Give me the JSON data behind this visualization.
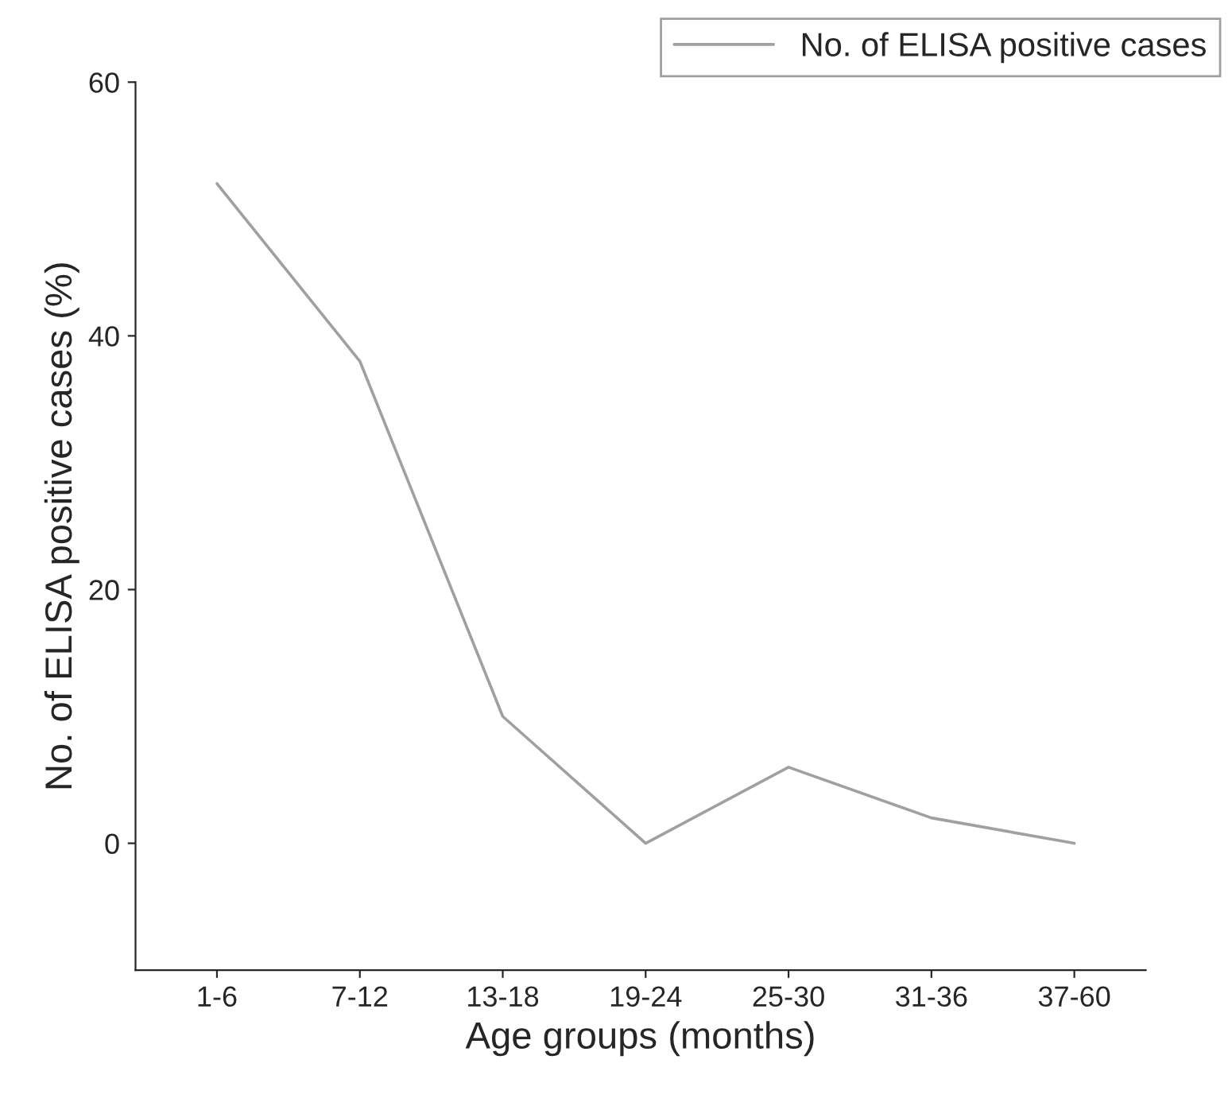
{
  "chart_data": {
    "type": "line",
    "xlabel": "Age groups (months)",
    "ylabel": "No. of ELISA positive cases (%)",
    "categories": [
      "1-6",
      "7-12",
      "13-18",
      "19-24",
      "25-30",
      "31-36",
      "37-60"
    ],
    "series": [
      {
        "name": "No. of ELISA positive cases",
        "color": "#a0a0a0",
        "values": [
          52,
          38,
          10,
          0,
          6,
          2,
          0
        ]
      }
    ],
    "ylim": [
      -10,
      60
    ],
    "yticks": [
      0,
      20,
      40,
      60
    ],
    "grid": false,
    "legend": "top right",
    "marker": "none",
    "line_style": "solid"
  }
}
